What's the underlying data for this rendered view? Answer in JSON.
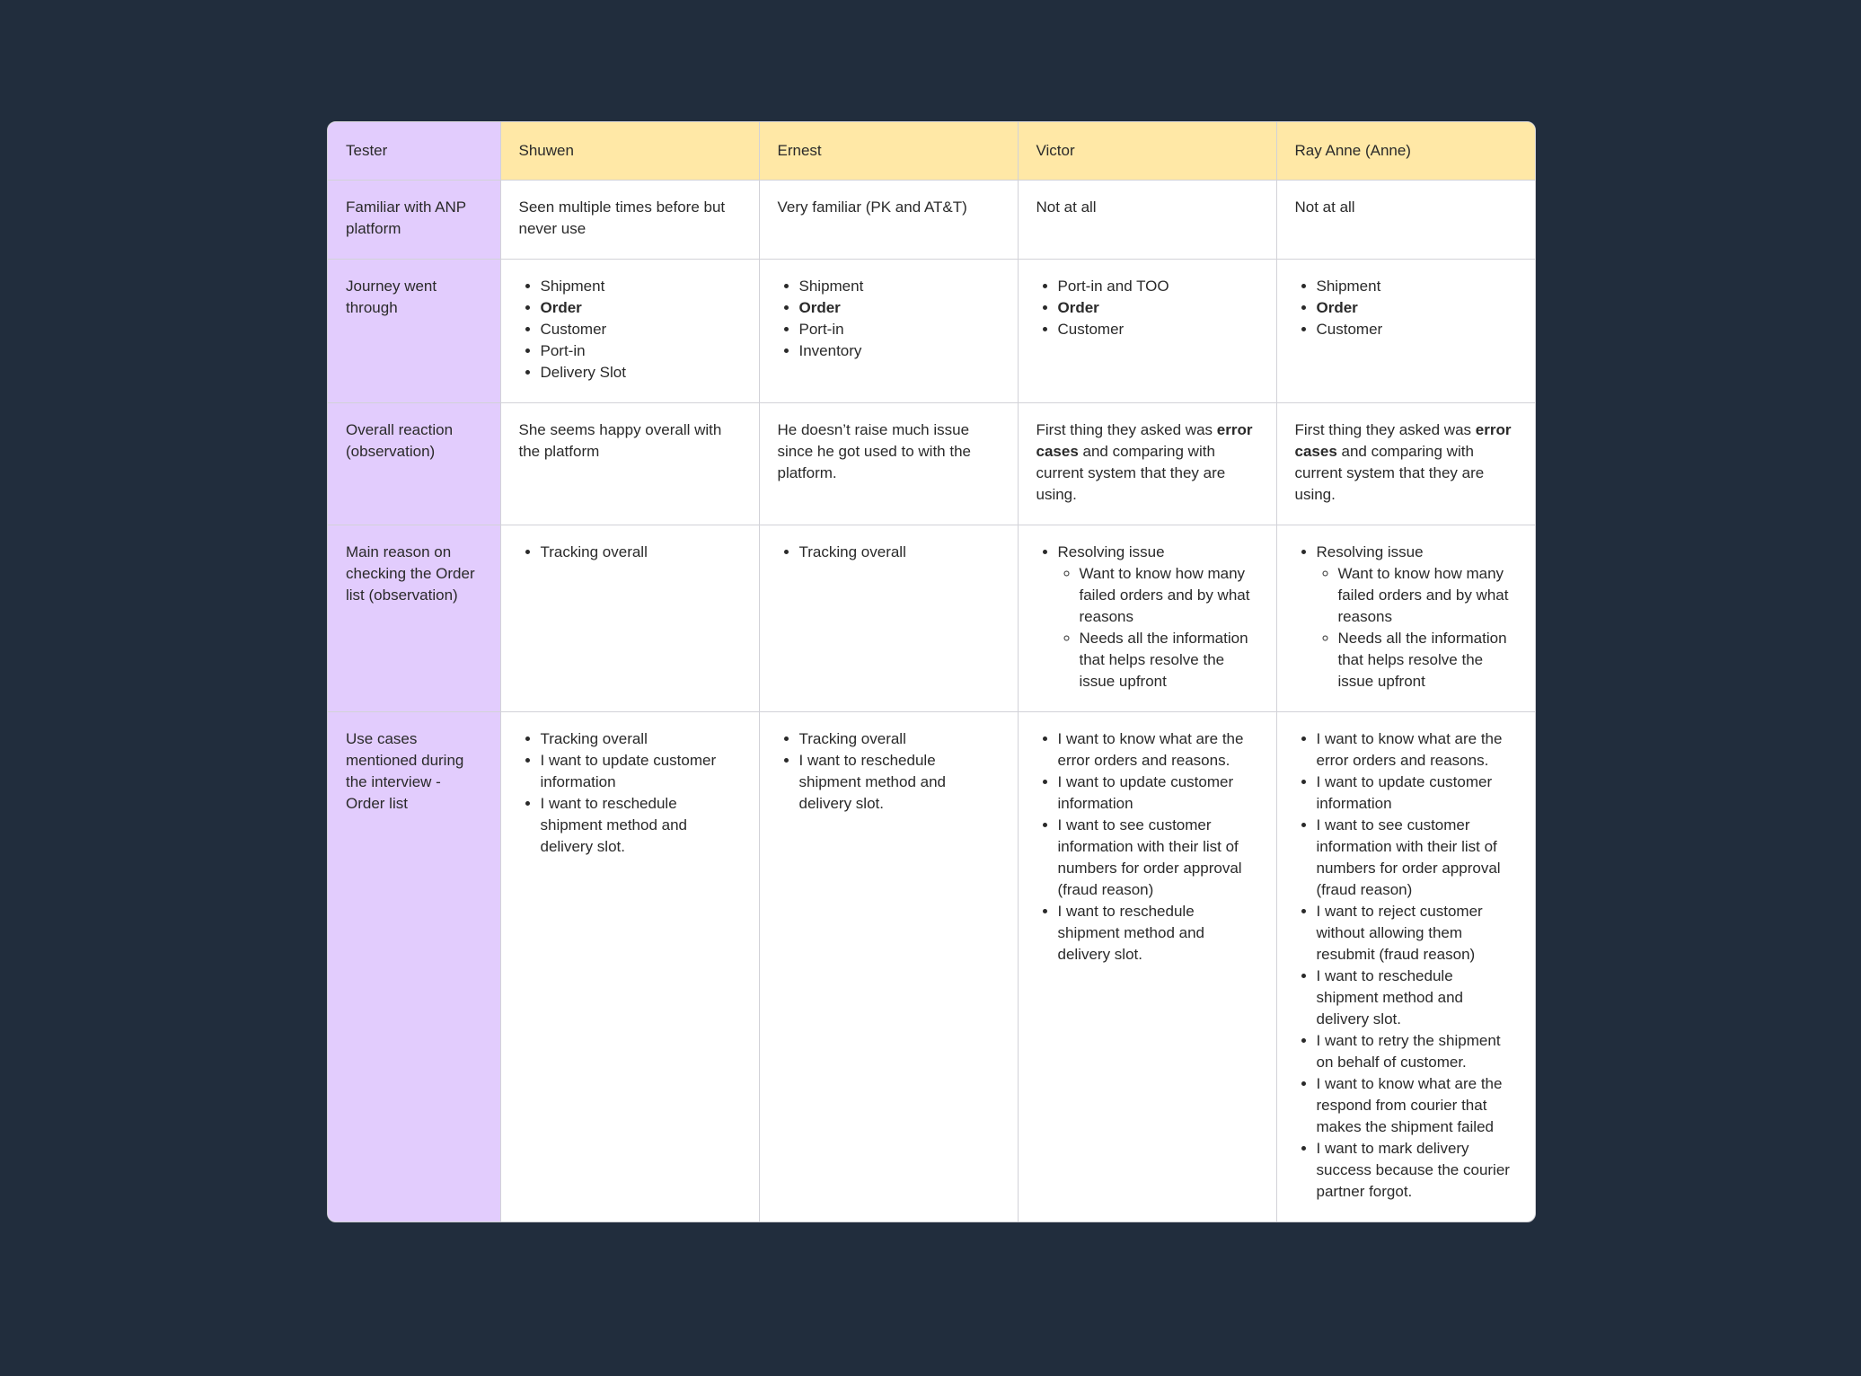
{
  "table": {
    "header": {
      "row_label": "Tester",
      "testers": [
        "Shuwen",
        "Ernest",
        "Victor",
        "Ray Anne (Anne)"
      ]
    },
    "familiar": {
      "label": "Familiar with ANP platform",
      "values": [
        "Seen multiple times before but never use",
        "Very familiar (PK and AT&T)",
        "Not at all",
        "Not at all"
      ]
    },
    "journey": {
      "label": "Journey went through",
      "shuwen": [
        "Shipment",
        "Order",
        "Customer",
        "Port-in",
        "Delivery Slot"
      ],
      "ernest": [
        "Shipment",
        "Order",
        "Port-in",
        "Inventory"
      ],
      "victor": [
        "Port-in and TOO",
        "Order",
        "Customer"
      ],
      "anne": [
        "Shipment",
        "Order",
        "Customer"
      ]
    },
    "reaction": {
      "label": "Overall reaction (observation)",
      "shuwen": "She seems happy overall with the platform",
      "ernest": "He doesn’t raise much issue since he got used to with the platform.",
      "victor": {
        "pre": "First thing they asked was ",
        "bold": "error cases",
        "post": " and comparing with current system that they are using."
      },
      "anne": {
        "pre": "First thing they asked was ",
        "bold": "error cases",
        "post": " and comparing with current system that they are using."
      }
    },
    "reason": {
      "label": "Main reason on checking the Order list (observation)",
      "shuwen": [
        "Tracking overall"
      ],
      "ernest": [
        "Tracking overall"
      ],
      "victor": {
        "main": "Resolving issue",
        "sub": [
          "Want to know how many failed orders and by what reasons",
          "Needs all the information that helps resolve the issue upfront"
        ]
      },
      "anne": {
        "main": "Resolving issue",
        "sub": [
          "Want to know how many failed orders and by what reasons",
          "Needs all the information that helps resolve the issue upfront"
        ]
      }
    },
    "usecases": {
      "label": "Use cases mentioned during the interview - Order list",
      "shuwen": [
        "Tracking overall",
        "I want to update customer information",
        "I want to reschedule shipment method and delivery slot."
      ],
      "ernest": [
        "Tracking overall",
        "I want to reschedule shipment method and delivery slot."
      ],
      "victor": [
        "I want to know what are the error orders and reasons.",
        "I want to update customer information",
        "I want to see customer information with their list of numbers for order approval (fraud reason)",
        "I want to reschedule shipment method and delivery slot."
      ],
      "anne": [
        "I want to know what are the error orders and reasons.",
        "I want to update customer information",
        "I want to see customer information with their list of numbers for order approval (fraud reason)",
        "I want to reject customer without allowing them resubmit (fraud reason)",
        "I want to reschedule shipment method and delivery slot.",
        "I want to retry the shipment on behalf of customer.",
        "I want to know what are the respond from courier that makes the shipment failed",
        "I want to mark delivery success because the courier partner forgot."
      ]
    }
  }
}
